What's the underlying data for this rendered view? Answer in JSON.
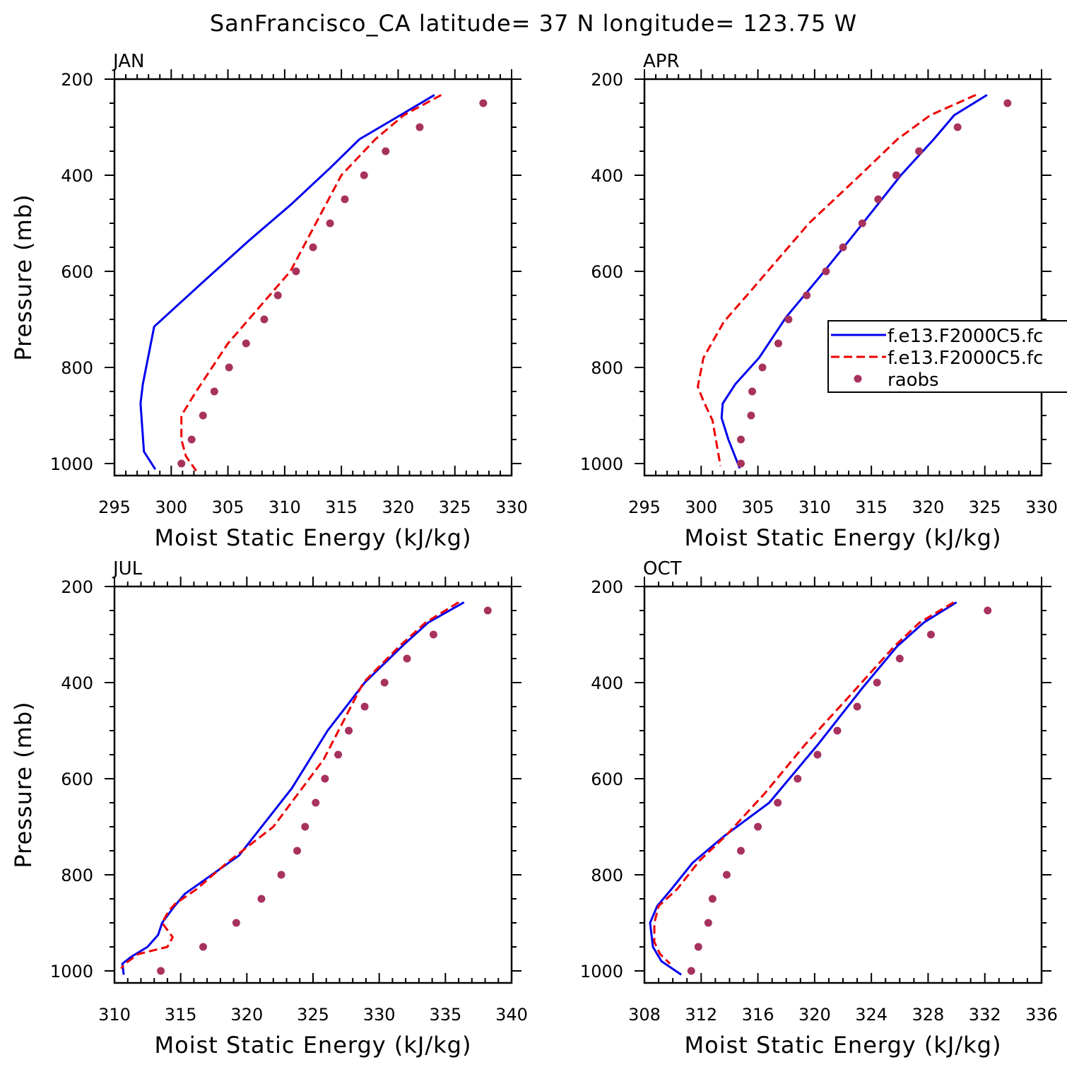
{
  "figure_title": "SanFrancisco_CA  latitude= 37 N longitude= 123.75 W",
  "colors": {
    "model1": "#0000ee",
    "model2": "#ee0000",
    "raobs": "#a8325e"
  },
  "legend": {
    "entries": [
      "f.e13.F2000C5.fc",
      "f.e13.F2000C5.fc",
      "raobs"
    ]
  },
  "chart_data": [
    {
      "type": "line",
      "panel": "JAN",
      "xlabel": "Moist Static Energy (kJ/kg)",
      "ylabel": "Pressure (mb)",
      "xlim": [
        295,
        330
      ],
      "ylim": [
        200,
        1025
      ],
      "xticks": [
        295,
        300,
        305,
        310,
        315,
        320,
        325,
        330
      ],
      "xticklabels": [
        "295",
        "300",
        "305",
        "310",
        "315",
        "320",
        "325",
        "330"
      ],
      "xminor": 1,
      "yticks": [
        200,
        400,
        600,
        800,
        1000
      ],
      "yticklabels": [
        "200",
        "400",
        "600",
        "800",
        "1000"
      ],
      "series": [
        {
          "name": "f.e13.F2000C5.fc",
          "style": "solid",
          "color": "#0000ee",
          "x": [
            323.2,
            320.2,
            316.6,
            314.0,
            310.6,
            306.9,
            302.9,
            298.5,
            297.5,
            297.3,
            297.6,
            298.6
          ],
          "y": [
            233,
            275,
            325,
            385,
            460,
            535,
            620,
            715,
            835,
            875,
            975,
            1012
          ]
        },
        {
          "name": "f.e13.F2000C5.fc",
          "style": "dashed",
          "color": "#ee0000",
          "x": [
            323.8,
            320.5,
            318.0,
            315.0,
            310.5,
            305.0,
            302.2,
            300.9,
            300.9,
            301.3,
            302.2
          ],
          "y": [
            233,
            275,
            325,
            400,
            600,
            750,
            850,
            900,
            950,
            985,
            1015
          ]
        },
        {
          "name": "raobs",
          "style": "marker",
          "color": "#a8325e",
          "x": [
            327.5,
            321.9,
            318.9,
            317.0,
            315.3,
            314.0,
            312.5,
            311.0,
            309.4,
            308.2,
            306.6,
            305.1,
            303.8,
            302.8,
            301.8,
            300.9
          ],
          "y": [
            250,
            300,
            350,
            400,
            450,
            500,
            550,
            600,
            650,
            700,
            750,
            800,
            850,
            900,
            950,
            1000
          ]
        }
      ]
    },
    {
      "type": "line",
      "panel": "APR",
      "xlabel": "Moist Static Energy (kJ/kg)",
      "ylabel": "",
      "xlim": [
        295,
        330
      ],
      "ylim": [
        200,
        1025
      ],
      "xticks": [
        295,
        300,
        305,
        310,
        315,
        320,
        325,
        330
      ],
      "xticklabels": [
        "295",
        "300",
        "305",
        "310",
        "315",
        "320",
        "325",
        "330"
      ],
      "xminor": 1,
      "yticks": [
        200,
        400,
        600,
        800,
        1000
      ],
      "yticklabels": [
        "200",
        "400",
        "600",
        "800",
        "1000"
      ],
      "series": [
        {
          "name": "f.e13.F2000C5.fc",
          "style": "solid",
          "color": "#0000ee",
          "x": [
            325.2,
            322.3,
            320.5,
            317.6,
            313.4,
            310.5,
            307.5,
            305.1,
            303.0,
            301.9,
            301.8,
            302.4,
            303.4
          ],
          "y": [
            233,
            275,
            325,
            400,
            525,
            610,
            695,
            780,
            835,
            875,
            905,
            950,
            1010
          ]
        },
        {
          "name": "f.e13.F2000C5.fc",
          "style": "dashed",
          "color": "#ee0000",
          "x": [
            324.2,
            320.2,
            317.3,
            314.0,
            309.5,
            304.4,
            302.0,
            300.2,
            299.7,
            300.2,
            301.0,
            301.7
          ],
          "y": [
            233,
            275,
            325,
            400,
            500,
            640,
            705,
            780,
            840,
            870,
            910,
            1005
          ]
        },
        {
          "name": "raobs",
          "style": "marker",
          "color": "#a8325e",
          "x": [
            327.0,
            322.6,
            319.2,
            317.2,
            315.6,
            314.2,
            312.5,
            311.0,
            309.3,
            307.7,
            306.8,
            305.4,
            304.5,
            304.4,
            303.5,
            303.5
          ],
          "y": [
            250,
            300,
            350,
            400,
            450,
            500,
            550,
            600,
            650,
            700,
            750,
            800,
            850,
            900,
            950,
            1000
          ]
        }
      ]
    },
    {
      "type": "line",
      "panel": "JUL",
      "xlabel": "Moist Static Energy (kJ/kg)",
      "ylabel": "Pressure (mb)",
      "xlim": [
        310,
        340
      ],
      "ylim": [
        200,
        1025
      ],
      "xticks": [
        310,
        315,
        320,
        325,
        330,
        335,
        340
      ],
      "xticklabels": [
        "310",
        "315",
        "320",
        "325",
        "330",
        "335",
        "340"
      ],
      "xminor": 1,
      "yticks": [
        200,
        400,
        600,
        800,
        1000
      ],
      "yticklabels": [
        "200",
        "400",
        "600",
        "800",
        "1000"
      ],
      "series": [
        {
          "name": "f.e13.F2000C5.fc",
          "style": "solid",
          "color": "#0000ee",
          "x": [
            336.4,
            333.7,
            331.7,
            328.9,
            326.1,
            323.4,
            319.4,
            315.3,
            314.4,
            313.6,
            313.3,
            312.5,
            311.3,
            310.6,
            310.7
          ],
          "y": [
            233,
            275,
            325,
            400,
            500,
            620,
            760,
            840,
            870,
            900,
            925,
            950,
            970,
            985,
            1008
          ]
        },
        {
          "name": "f.e13.F2000C5.fc",
          "style": "dashed",
          "color": "#ee0000",
          "x": [
            336.0,
            333.5,
            331.5,
            328.8,
            325.8,
            322.0,
            318.5,
            316.2,
            314.6,
            314.1,
            313.6,
            314.4,
            314.0,
            311.8,
            310.8,
            310.5
          ],
          "y": [
            233,
            275,
            325,
            400,
            560,
            700,
            775,
            830,
            860,
            875,
            900,
            930,
            950,
            965,
            985,
            995
          ]
        },
        {
          "name": "raobs",
          "style": "marker",
          "color": "#a8325e",
          "x": [
            338.2,
            334.1,
            332.1,
            330.4,
            328.9,
            327.7,
            326.9,
            325.9,
            325.2,
            324.4,
            323.8,
            322.6,
            321.1,
            319.2,
            316.7,
            313.5
          ],
          "y": [
            250,
            300,
            350,
            400,
            450,
            500,
            550,
            600,
            650,
            700,
            750,
            800,
            850,
            900,
            950,
            1000
          ]
        }
      ]
    },
    {
      "type": "line",
      "panel": "OCT",
      "xlabel": "Moist Static Energy (kJ/kg)",
      "ylabel": "",
      "xlim": [
        308,
        336
      ],
      "ylim": [
        200,
        1025
      ],
      "xticks": [
        308,
        312,
        316,
        320,
        324,
        328,
        332,
        336
      ],
      "xticklabels": [
        "308",
        "312",
        "316",
        "320",
        "324",
        "328",
        "332",
        "336"
      ],
      "xminor": 1,
      "yticks": [
        200,
        400,
        600,
        800,
        1000
      ],
      "yticklabels": [
        "200",
        "400",
        "600",
        "800",
        "1000"
      ],
      "series": [
        {
          "name": "f.e13.F2000C5.fc",
          "style": "solid",
          "color": "#0000ee",
          "x": [
            330.0,
            327.7,
            325.8,
            323.4,
            320.2,
            316.8,
            313.6,
            311.4,
            309.9,
            308.9,
            308.4,
            308.6,
            309.2,
            310.6
          ],
          "y": [
            233,
            275,
            325,
            410,
            530,
            650,
            720,
            775,
            830,
            865,
            900,
            950,
            980,
            1008
          ]
        },
        {
          "name": "f.e13.F2000C5.fc",
          "style": "dashed",
          "color": "#ee0000",
          "x": [
            329.8,
            327.4,
            325.6,
            322.4,
            319.3,
            316.5,
            313.7,
            311.9,
            310.3,
            309.0,
            308.7,
            308.7,
            309.1,
            309.8
          ],
          "y": [
            233,
            275,
            325,
            430,
            530,
            630,
            720,
            770,
            830,
            865,
            900,
            940,
            965,
            985
          ]
        },
        {
          "name": "raobs",
          "style": "marker",
          "color": "#a8325e",
          "x": [
            332.2,
            328.2,
            326.0,
            324.4,
            323.0,
            321.6,
            320.2,
            318.8,
            317.4,
            316.0,
            314.8,
            313.8,
            312.8,
            312.5,
            311.8,
            311.3
          ],
          "y": [
            250,
            300,
            350,
            400,
            450,
            500,
            550,
            600,
            650,
            700,
            750,
            800,
            850,
            900,
            950,
            1000
          ]
        }
      ]
    }
  ]
}
